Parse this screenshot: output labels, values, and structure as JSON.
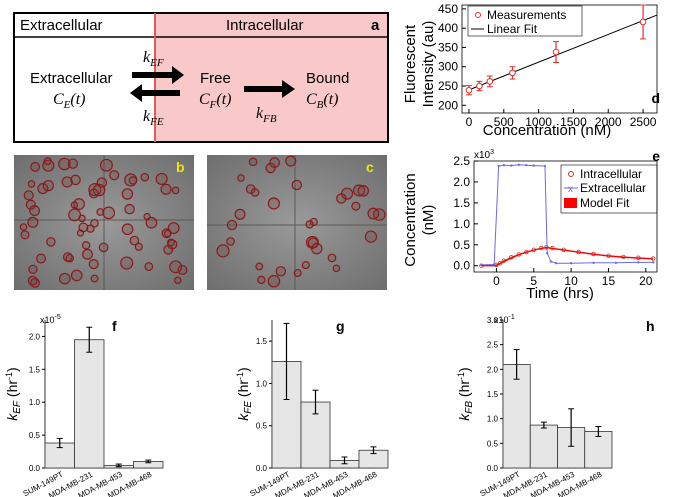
{
  "figure": {
    "panel_labels": [
      "a",
      "b",
      "c",
      "d",
      "e",
      "f",
      "g",
      "h"
    ]
  },
  "diagram": {
    "region_extracellular": "Extracellular",
    "region_intracellular": "Intracellular",
    "node_extracellular_title": "Extracellular",
    "node_extracellular_sym": "C",
    "node_extracellular_sub": "E",
    "node_extracellular_arg": "(t)",
    "node_free_title": "Free",
    "node_free_sym": "C",
    "node_free_sub": "F",
    "node_free_arg": "(t)",
    "node_bound_title": "Bound",
    "node_bound_sym": "C",
    "node_bound_sub": "B",
    "node_bound_arg": "(t)",
    "rate_k": "k",
    "rate_ef_sub": "EF",
    "rate_fe_sub": "FE",
    "rate_fb_sub": "FB",
    "colors": {
      "intracellular_fill": "#f9c9c9",
      "divider": "#e05a5a"
    }
  },
  "micrographs": {
    "label_color": "#f2e600",
    "cell_outline_color": "#8a1a1a"
  },
  "chart_data": [
    {
      "id": "d",
      "type": "scatter",
      "ylabel_line1": "Fluorescent",
      "ylabel_line2": "Intensity (au)",
      "xlabel": "Concentration (nM)",
      "xlim": [
        -100,
        2700
      ],
      "ylim": [
        180,
        460
      ],
      "xticks": [
        0,
        500,
        1000,
        1500,
        2000,
        2500
      ],
      "yticks": [
        200,
        250,
        300,
        350,
        400,
        450
      ],
      "legend": {
        "measurements": "Measurements",
        "fit": "Linear Fit",
        "placement": "top-left"
      },
      "x": [
        0,
        150,
        300,
        625,
        1250,
        2500
      ],
      "y": [
        239,
        250,
        262,
        284,
        338,
        416
      ],
      "err": [
        12,
        12,
        14,
        16,
        27,
        44
      ],
      "fit_line": {
        "x": [
          0,
          2700
        ],
        "y": [
          240,
          434
        ]
      },
      "colors": {
        "marker": "#e0302a",
        "fit": "#000000"
      }
    },
    {
      "id": "e",
      "type": "line",
      "ylabel_line1": "Concentration",
      "ylabel_line2": "(nM)",
      "xlabel": "Time (hrs)",
      "xlim": [
        -3,
        21.5
      ],
      "ylim": [
        -0.15,
        2.5
      ],
      "xticks": [
        0,
        5,
        10,
        15,
        20
      ],
      "yticks": [
        0,
        0.5,
        1.0,
        1.5,
        2.0,
        2.5
      ],
      "ytick_labels": [
        "0.0",
        "0.5",
        "1.0",
        "1.5",
        "2.0",
        "2.5"
      ],
      "multiplier": "x10",
      "multiplier_exp": "3",
      "legend": {
        "intracellular": "Intracellular",
        "extracellular": "Extracellular",
        "model": "Model Fit",
        "placement": "top-right"
      },
      "series": [
        {
          "name": "Intracellular",
          "x": [
            -2,
            0,
            0.5,
            1,
            2,
            3,
            4,
            5,
            6,
            6.7,
            7.5,
            9,
            11,
            13,
            15,
            17,
            19,
            21
          ],
          "y": [
            0.0,
            0.02,
            0.06,
            0.12,
            0.2,
            0.27,
            0.33,
            0.38,
            0.42,
            0.44,
            0.42,
            0.38,
            0.33,
            0.28,
            0.24,
            0.21,
            0.19,
            0.17
          ]
        },
        {
          "name": "Extracellular",
          "x": [
            -2,
            -0.3,
            0.3,
            1,
            2,
            3,
            4,
            5,
            6.5,
            6.8,
            7.3,
            8,
            10,
            13,
            16,
            19,
            21
          ],
          "y": [
            0.02,
            0.03,
            2.38,
            2.4,
            2.39,
            2.41,
            2.4,
            2.39,
            2.38,
            0.3,
            0.1,
            0.06,
            0.06,
            0.07,
            0.07,
            0.08,
            0.08
          ]
        },
        {
          "name": "Model Fit",
          "x": [
            -2,
            0,
            0.5,
            1,
            2,
            3,
            4,
            5,
            6,
            6.7,
            7.5,
            9,
            11,
            13,
            15,
            17,
            19,
            21
          ],
          "y": [
            0.0,
            0.0,
            0.05,
            0.1,
            0.18,
            0.26,
            0.32,
            0.37,
            0.41,
            0.43,
            0.41,
            0.37,
            0.32,
            0.27,
            0.23,
            0.2,
            0.18,
            0.16
          ]
        }
      ],
      "colors": {
        "intracellular": "#c8342a",
        "extracellular": "#6a6ae8",
        "model": "#ff0000"
      }
    },
    {
      "id": "f",
      "type": "bar",
      "ylabel_sym": "k",
      "ylabel_sub": "EF",
      "ylabel_unit": "(hr",
      "ylabel_exp": "-1",
      "ylabel_close": ")",
      "multiplier": "x10",
      "multiplier_exp": "-5",
      "ylim": [
        0,
        2.25
      ],
      "yticks": [
        0,
        0.5,
        1.0,
        1.5,
        2.0
      ],
      "ytick_labels": [
        "0.0",
        "0.5",
        "1.0",
        "1.5",
        "2.0"
      ],
      "categories": [
        "SUM-149PT",
        "MDA-MB-231",
        "MDA-MB-453",
        "MDA-MB-468"
      ],
      "values": [
        0.38,
        1.95,
        0.04,
        0.1
      ],
      "errors": [
        0.07,
        0.19,
        0.02,
        0.02
      ],
      "colors": {
        "bar": "#e6e6e6"
      }
    },
    {
      "id": "g",
      "type": "bar",
      "ylabel_sym": "k",
      "ylabel_sub": "FE",
      "ylabel_unit": "(hr",
      "ylabel_exp": "-1",
      "ylabel_close": ")",
      "ylim": [
        0,
        1.75
      ],
      "yticks": [
        0,
        0.5,
        1.0,
        1.5
      ],
      "ytick_labels": [
        "0.0",
        "0.5",
        "1.0",
        "1.5"
      ],
      "categories": [
        "SUM-149PT",
        "MDA-MB-231",
        "MDA-MB-453",
        "MDA-MB-468"
      ],
      "values": [
        1.26,
        0.78,
        0.09,
        0.21
      ],
      "errors": [
        0.45,
        0.14,
        0.04,
        0.04
      ],
      "colors": {
        "bar": "#e6e6e6"
      }
    },
    {
      "id": "h",
      "type": "bar",
      "ylabel_sym": "k",
      "ylabel_sub": "FB",
      "ylabel_unit": "(hr",
      "ylabel_exp": "-1",
      "ylabel_close": ")",
      "multiplier": "x10",
      "multiplier_exp": "-1",
      "ylim": [
        0,
        3.0
      ],
      "yticks": [
        0,
        0.5,
        1.0,
        1.5,
        2.0,
        2.5,
        3.0
      ],
      "ytick_labels": [
        "0.0",
        "0.5",
        "1.0",
        "1.5",
        "2.0",
        "2.5",
        "3.0"
      ],
      "categories": [
        "SUM-149PT",
        "MDA-MB-231",
        "MDA-MB-453",
        "MDA-MB-468"
      ],
      "values": [
        2.1,
        0.87,
        0.82,
        0.74
      ],
      "errors": [
        0.3,
        0.06,
        0.38,
        0.1
      ],
      "colors": {
        "bar": "#e6e6e6"
      }
    }
  ]
}
